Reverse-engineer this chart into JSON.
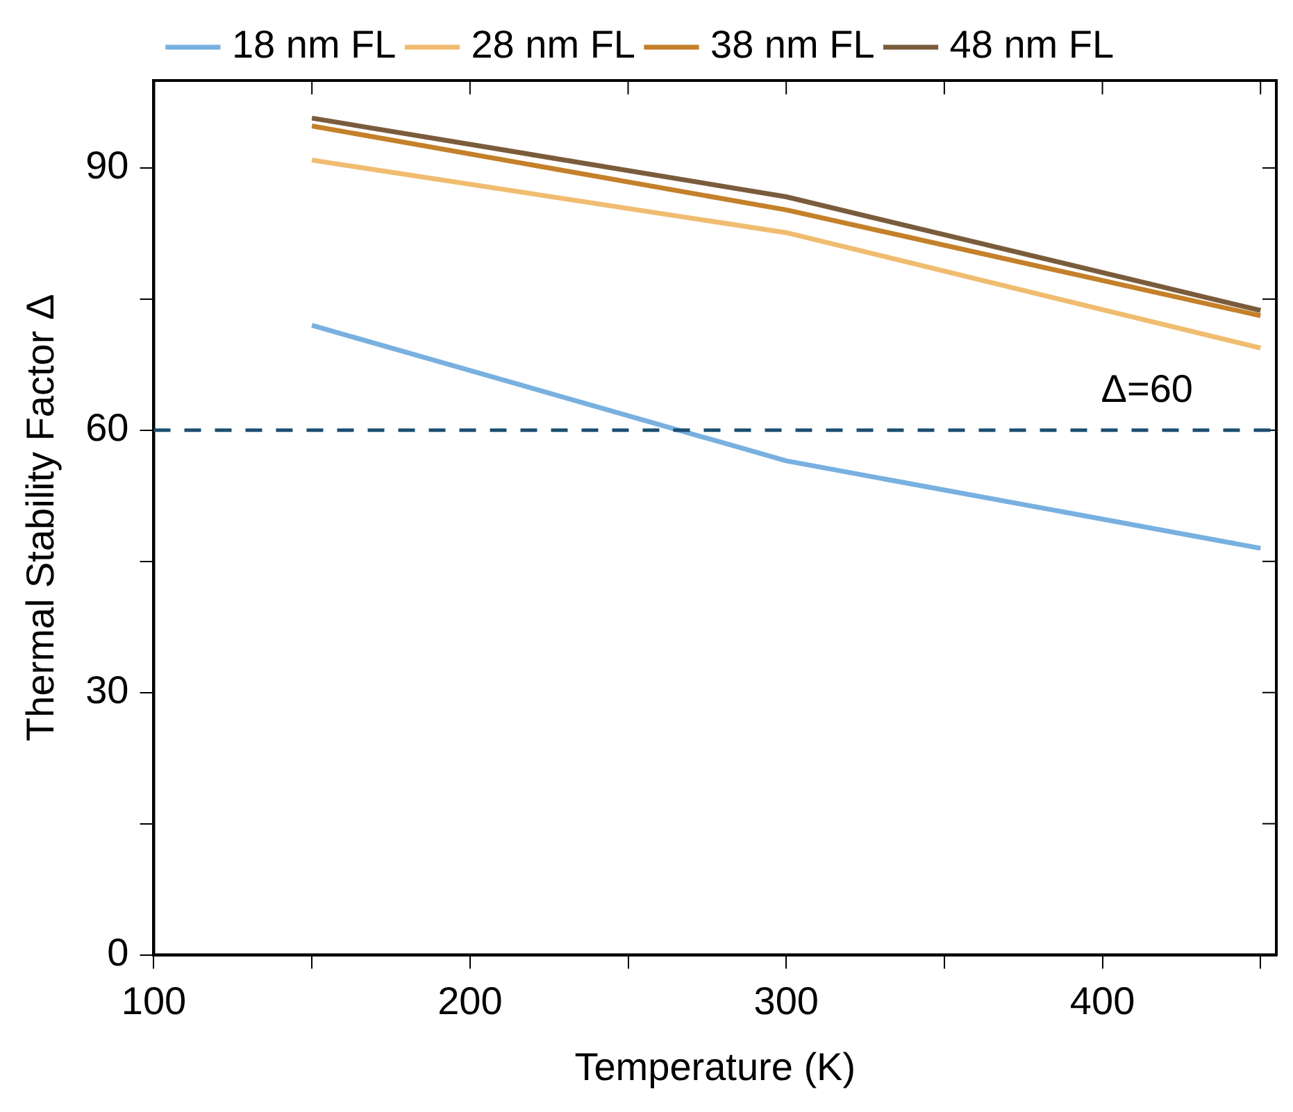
{
  "chart_data": {
    "type": "line",
    "xlabel": "Temperature (K)",
    "ylabel": "Thermal Stability Factor Δ",
    "x": [
      150,
      300,
      450
    ],
    "series": [
      {
        "name": "18 nm FL",
        "color": "#78b0e0",
        "values": [
          72,
          56.5,
          46.5
        ]
      },
      {
        "name": "28 nm FL",
        "color": "#f0bc70",
        "values": [
          90.9,
          82.6,
          69.4
        ]
      },
      {
        "name": "38 nm FL",
        "color": "#c4802a",
        "values": [
          94.8,
          85.2,
          73.1
        ]
      },
      {
        "name": "48 nm FL",
        "color": "#7a5c3c",
        "values": [
          95.7,
          86.7,
          73.7
        ]
      }
    ],
    "xlim": [
      100,
      455
    ],
    "xticks": [
      100,
      {
        "value": 150,
        "label": null
      },
      200,
      {
        "value": 250,
        "label": null
      },
      300,
      {
        "value": 350,
        "label": null
      },
      400,
      {
        "value": 450,
        "label": null
      }
    ],
    "ylim": [
      0,
      100
    ],
    "yticks": [
      0,
      {
        "value": 15,
        "label": null
      },
      30,
      {
        "value": 45,
        "label": null
      },
      60,
      {
        "value": 75,
        "label": null
      },
      90
    ],
    "ref_lines": [
      {
        "axis": "y",
        "value": 60,
        "label": "Δ=60",
        "color": "#1b4f72",
        "line_style": "dashed"
      }
    ],
    "grid": false,
    "legend": "top",
    "marker": "none",
    "line_style": "solid"
  }
}
